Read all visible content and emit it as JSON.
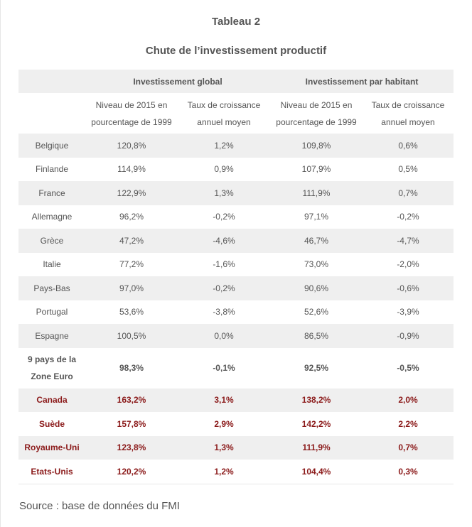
{
  "title": "Tableau 2",
  "subtitle": "Chute de l’investissement productif",
  "table": {
    "group_headers": [
      "",
      "Investissement global",
      "Investissement par habitant"
    ],
    "sub_headers": [
      "",
      "Niveau de 2015 en pourcentage de 1999",
      "Taux de croissance annuel moyen",
      "Niveau de 2015 en pourcentage de 1999",
      "Taux de croissance annuel moyen"
    ],
    "rows": [
      {
        "country": "Belgique",
        "cells": [
          "120,8%",
          "1,2%",
          "109,8%",
          "0,6%"
        ]
      },
      {
        "country": "Finlande",
        "cells": [
          "114,9%",
          "0,9%",
          "107,9%",
          "0,5%"
        ]
      },
      {
        "country": "France",
        "cells": [
          "122,9%",
          "1,3%",
          "111,9%",
          "0,7%"
        ]
      },
      {
        "country": "Allemagne",
        "cells": [
          "96,2%",
          "-0,2%",
          "97,1%",
          "-0,2%"
        ]
      },
      {
        "country": "Grèce",
        "cells": [
          "47,2%",
          "-4,6%",
          "46,7%",
          "-4,7%"
        ]
      },
      {
        "country": "Italie",
        "cells": [
          "77,2%",
          "-1,6%",
          "73,0%",
          "-2,0%"
        ]
      },
      {
        "country": "Pays-Bas",
        "cells": [
          "97,0%",
          "-0,2%",
          "90,6%",
          "-0,6%"
        ]
      },
      {
        "country": "Portugal",
        "cells": [
          "53,6%",
          "-3,8%",
          "52,6%",
          "-3,9%"
        ]
      },
      {
        "country": "Espagne",
        "cells": [
          "100,5%",
          "0,0%",
          "86,5%",
          "-0,9%"
        ]
      },
      {
        "country": "9 pays de la Zone Euro",
        "cells": [
          "98,3%",
          "-0,1%",
          "92,5%",
          "-0,5%"
        ]
      },
      {
        "country": "Canada",
        "cells": [
          "163,2%",
          "3,1%",
          "138,2%",
          "2,0%"
        ]
      },
      {
        "country": "Suède",
        "cells": [
          "157,8%",
          "2,9%",
          "142,2%",
          "2,2%"
        ]
      },
      {
        "country": "Royaume-Uni",
        "cells": [
          "123,8%",
          "1,3%",
          "111,9%",
          "0,7%"
        ]
      },
      {
        "country": "Etats-Unis",
        "cells": [
          "120,2%",
          "1,2%",
          "104,4%",
          "0,3%"
        ]
      }
    ]
  },
  "source": "Source : base de données du FMI",
  "colors": {
    "highlight_text": "#8b1a1a",
    "row_shade": "#efefef",
    "text": "#555555"
  }
}
